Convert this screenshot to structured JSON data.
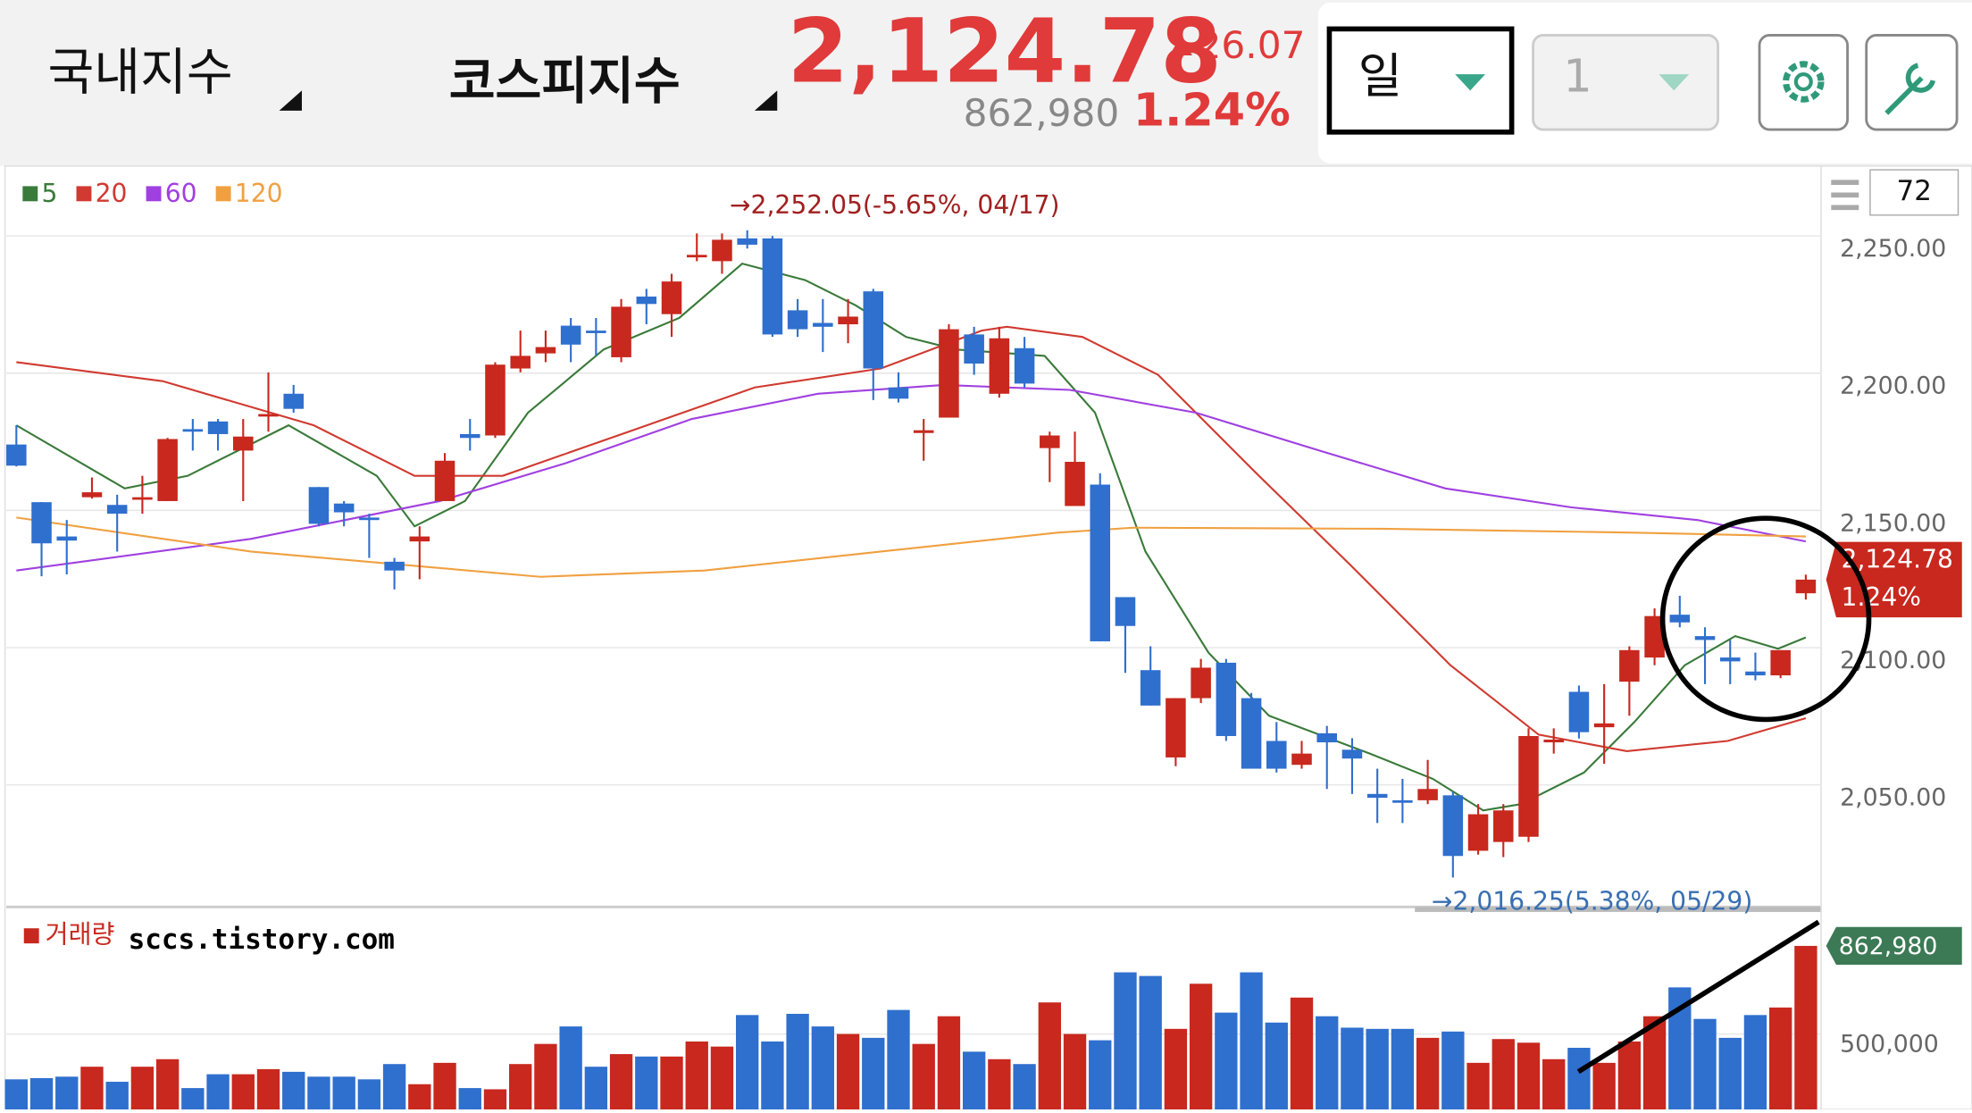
{
  "header": {
    "market": "국내지수",
    "index_name": "코스피지수",
    "price": "2,124.78",
    "change": "26.07",
    "volume": "862,980",
    "change_pct": "1.24%",
    "period": "일",
    "period_count": "1"
  },
  "chart_data": [
    {
      "type": "candlestick",
      "zoom": 72,
      "open": [
        2174,
        2153,
        2140.5,
        2154.8,
        2152,
        2153.9,
        2153.4,
        2179.6,
        2182.4,
        2171.8,
        2184.2,
        2192.5,
        2158.5,
        2152.5,
        2147.4,
        2131.3,
        2138.7,
        2153.4,
        2177.8,
        2177.3,
        2201.7,
        2207.2,
        2217.3,
        2215.5,
        2205.8,
        2227.9,
        2221.5,
        2242.2,
        2240.8,
        2249.1,
        2249.1,
        2222.9,
        2218.3,
        2217.8,
        2229.8,
        2194.8,
        2178.2,
        2183.8,
        2214.1,
        2192.5,
        2209.1,
        2172.7,
        2151.6,
        2159.4,
        2118.4,
        2091.8,
        2060,
        2081.6,
        2094.5,
        2081.6,
        2066,
        2057.3,
        2068.8,
        2062.8,
        2046.7,
        2044.4,
        2044.4,
        2046.2,
        2026,
        2029.2,
        2031.1,
        2065.5,
        2083.9,
        2071,
        2087.6,
        2096.4,
        2112,
        2104.2,
        2096.4,
        2091.3,
        2089.9,
        2119.8
      ],
      "high": [
        2181,
        2153,
        2146.5,
        2162,
        2155.7,
        2162.6,
        2176.4,
        2183.3,
        2183.3,
        2183.3,
        2200.3,
        2195.7,
        2158.5,
        2153.4,
        2148.8,
        2132.7,
        2144.2,
        2170.9,
        2183.3,
        2204,
        2215.5,
        2215.5,
        2220.1,
        2220.1,
        2227,
        2230.7,
        2236.2,
        2250.9,
        2250.9,
        2252.05,
        2250,
        2227,
        2227,
        2227,
        2230.7,
        2200.3,
        2183.3,
        2217.8,
        2216.9,
        2216.9,
        2213.2,
        2178.7,
        2178.7,
        2163.5,
        2118.4,
        2100.5,
        2081.6,
        2095.9,
        2095.9,
        2083.5,
        2072.9,
        2066,
        2071.5,
        2067,
        2055.9,
        2052.2,
        2059.1,
        2047.6,
        2043,
        2043,
        2070.6,
        2070.6,
        2086.2,
        2086.7,
        2100.5,
        2114.3,
        2118.9,
        2107.4,
        2102.8,
        2098.2,
        2099.1,
        2126.6
      ],
      "low": [
        2166,
        2126,
        2126.7,
        2154.3,
        2135,
        2148.8,
        2153.4,
        2171.8,
        2171.8,
        2153.4,
        2178.7,
        2185.6,
        2144.2,
        2144.2,
        2132.7,
        2121.2,
        2124.9,
        2153.4,
        2171.8,
        2176.4,
        2200.3,
        2204,
        2204,
        2206.3,
        2204,
        2217.8,
        2213.2,
        2240.8,
        2236.2,
        2245.4,
        2213.2,
        2213.2,
        2207.7,
        2210.9,
        2190.2,
        2189.3,
        2168.1,
        2183.8,
        2199.4,
        2191.1,
        2194.8,
        2160.3,
        2151.6,
        2102.3,
        2090.8,
        2078.9,
        2056.8,
        2079.8,
        2066,
        2055.9,
        2054.5,
        2055.9,
        2048.5,
        2046.7,
        2036.1,
        2036.1,
        2043,
        2016.25,
        2024.6,
        2023.7,
        2029.2,
        2061.4,
        2066.9,
        2057.7,
        2075.2,
        2093.6,
        2107.4,
        2086.7,
        2086.7,
        2088.1,
        2088.9,
        2117.5
      ],
      "close": [
        2166.3,
        2138,
        2139,
        2156.6,
        2148.8,
        2154.8,
        2176,
        2178.7,
        2177.8,
        2176.9,
        2185.1,
        2187,
        2145.1,
        2149.3,
        2146.5,
        2128.1,
        2140.5,
        2168.1,
        2176.4,
        2203.1,
        2206.3,
        2209.5,
        2210.4,
        2214.6,
        2224.2,
        2225.2,
        2233.4,
        2243.1,
        2248.6,
        2246.8,
        2214.1,
        2216,
        2216.9,
        2220.6,
        2201.7,
        2190.7,
        2179.2,
        2216,
        2203.5,
        2212.7,
        2196.2,
        2177.3,
        2167.7,
        2102.3,
        2107.9,
        2078.9,
        2081.6,
        2092.7,
        2067.8,
        2055.9,
        2055.9,
        2061.4,
        2065.5,
        2059.6,
        2045.3,
        2043.5,
        2048.5,
        2024.1,
        2039.3,
        2040.7,
        2067.8,
        2066.5,
        2069.2,
        2072.4,
        2099.1,
        2111.5,
        2109.2,
        2102.8,
        2095,
        2089.9,
        2099.1,
        2124.78
      ],
      "up_color": "#c8281e",
      "down_color": "#2f6fce",
      "series": [
        {
          "name": "5",
          "color": "#3a7a3a",
          "x": [
            0,
            4.3,
            6.8,
            10.8,
            14.3,
            15.8,
            17.8,
            20.3,
            23.3,
            26.3,
            28.8,
            31.3,
            33.3,
            35.3,
            37.3,
            40.8,
            42.8,
            44.8,
            47.3,
            49.7,
            53.7,
            56.2,
            58.2,
            59.7,
            62.2,
            64.2,
            66.2,
            68.2,
            69.9,
            71
          ],
          "values": [
            2181,
            2158,
            2162.6,
            2181,
            2162.6,
            2144.2,
            2153.4,
            2185.6,
            2208.6,
            2220.1,
            2239.9,
            2233.9,
            2224.7,
            2213.2,
            2208.6,
            2206.3,
            2185.6,
            2135,
            2098.2,
            2075.2,
            2061.4,
            2052.2,
            2040.7,
            2043,
            2054.5,
            2072.9,
            2093.6,
            2104.2,
            2099.6,
            2103.7
          ]
        },
        {
          "name": "20",
          "color": "#d03a30",
          "x": [
            0,
            5.8,
            11.8,
            15.8,
            19.3,
            24.3,
            29.3,
            34.3,
            38.3,
            39.3,
            42.3,
            45.3,
            49.3,
            52.9,
            56.9,
            60.4,
            63.9,
            67.9,
            71
          ],
          "values": [
            2204,
            2197.1,
            2181,
            2162.6,
            2162.6,
            2178.7,
            2194.8,
            2201.7,
            2215.5,
            2216.9,
            2213.2,
            2199.4,
            2162.6,
            2130.4,
            2093.6,
            2068.3,
            2062.3,
            2066,
            2074.3
          ]
        },
        {
          "name": "60",
          "color": "#a040e0",
          "x": [
            0,
            9.3,
            16.8,
            21.8,
            26.8,
            31.8,
            36.8,
            41.8,
            46.8,
            51.7,
            56.7,
            61.7,
            66.7,
            71
          ],
          "values": [
            2128.1,
            2139.6,
            2153.4,
            2167.2,
            2183.3,
            2192.5,
            2195.7,
            2193.9,
            2185.6,
            2171.8,
            2158,
            2151.1,
            2146.5,
            2138.7
          ]
        },
        {
          "name": "120",
          "color": "#f0a040",
          "x": [
            0,
            9.3,
            20.8,
            27.3,
            34.3,
            41.3,
            44.3,
            54.2,
            64.2,
            71
          ],
          "values": [
            2147.4,
            2135,
            2125.8,
            2128.1,
            2135,
            2141.9,
            2143.7,
            2143.3,
            2141.9,
            2140.5
          ]
        }
      ],
      "ylim": [
        2006,
        2275
      ],
      "yticks": [
        {
          "value": 2050,
          "label": "2,050.00"
        },
        {
          "value": 2100,
          "label": "2,100.00"
        },
        {
          "value": 2150,
          "label": "2,150.00"
        },
        {
          "value": 2200,
          "label": "2,200.00"
        },
        {
          "value": 2250,
          "label": "2,250.00"
        }
      ],
      "annotations": [
        {
          "text": "→2,252.05(-5.65%, 04/17)",
          "color": "#a02020"
        },
        {
          "text": "→2,016.25(5.38%, 05/29)",
          "color": "#3a6fb0"
        }
      ],
      "last_label": {
        "price": "2,124.78",
        "pct": "1.24%"
      }
    },
    {
      "type": "bar",
      "title": "거래량",
      "watermark": "sccs.tistory.com",
      "values": [
        313000,
        318000,
        324000,
        365000,
        303000,
        365000,
        396000,
        277000,
        334000,
        334000,
        355000,
        344000,
        324000,
        324000,
        313000,
        376000,
        293000,
        381000,
        277000,
        272000,
        376000,
        459000,
        531000,
        365000,
        417000,
        407000,
        407000,
        469000,
        448000,
        578000,
        469000,
        583000,
        531000,
        500000,
        484000,
        599000,
        459000,
        573000,
        427000,
        396000,
        376000,
        630000,
        500000,
        474000,
        754000,
        739000,
        521000,
        707000,
        588000,
        754000,
        547000,
        650000,
        573000,
        526000,
        521000,
        521000,
        484000,
        510000,
        381000,
        479000,
        464000,
        396000,
        443000,
        381000,
        469000,
        573000,
        692000,
        562000,
        484000,
        578000,
        609000,
        862980
      ],
      "ylim": [
        189000,
        977000
      ],
      "yticks": [
        {
          "value": 500000,
          "label": "500,000"
        }
      ],
      "last_label": "862,980",
      "label_color": "#3c7a55"
    }
  ]
}
